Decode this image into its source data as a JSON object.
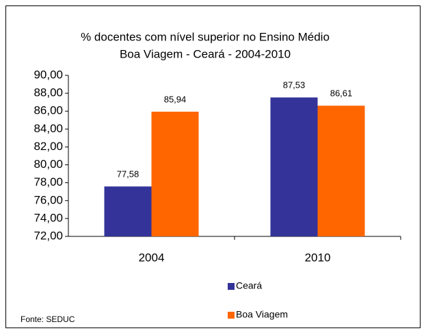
{
  "chart_data": {
    "type": "bar",
    "title": "% docentes com nível superior no Ensino Médio",
    "subtitle": "Boa Viagem - Ceará - 2004-2010",
    "categories": [
      "2004",
      "2010"
    ],
    "series": [
      {
        "name": "Ceará",
        "color": "#333399",
        "values": [
          77.58,
          87.53
        ],
        "value_labels": [
          "77,58",
          "87,53"
        ]
      },
      {
        "name": "Boa Viagem",
        "color": "#ff6600",
        "values": [
          85.94,
          86.61
        ],
        "value_labels": [
          "85,94",
          "86,61"
        ]
      }
    ],
    "ylim": [
      72,
      90
    ],
    "yticks": [
      {
        "value": 72,
        "label": "72,00"
      },
      {
        "value": 74,
        "label": "74,00"
      },
      {
        "value": 76,
        "label": "76,00"
      },
      {
        "value": 78,
        "label": "78,00"
      },
      {
        "value": 80,
        "label": "80,00"
      },
      {
        "value": 82,
        "label": "82,00"
      },
      {
        "value": 84,
        "label": "84,00"
      },
      {
        "value": 86,
        "label": "86,00"
      },
      {
        "value": 88,
        "label": "88,00"
      },
      {
        "value": 90,
        "label": "90,00"
      }
    ],
    "source": "Fonte: SEDUC"
  }
}
